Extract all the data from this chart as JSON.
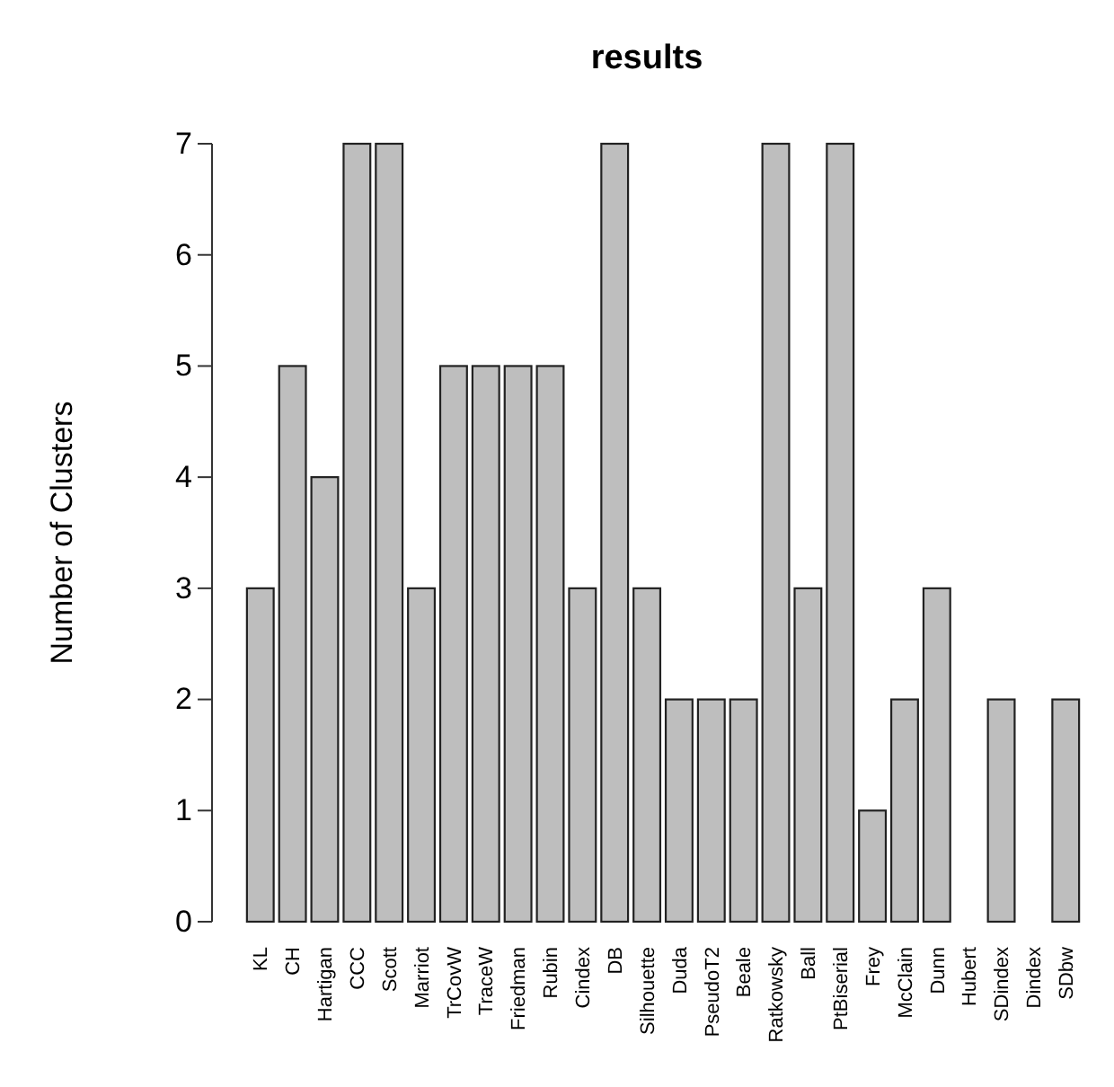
{
  "chart_data": {
    "type": "bar",
    "title": "results",
    "ylabel": "Number of Clusters",
    "categories": [
      "KL",
      "CH",
      "Hartigan",
      "CCC",
      "Scott",
      "Marriot",
      "TrCovW",
      "TraceW",
      "Friedman",
      "Rubin",
      "Cindex",
      "DB",
      "Silhouette",
      "Duda",
      "PseudoT2",
      "Beale",
      "Ratkowsky",
      "Ball",
      "PtBiserial",
      "Frey",
      "McClain",
      "Dunn",
      "Hubert",
      "SDindex",
      "Dindex",
      "SDbw"
    ],
    "values": [
      3,
      5,
      4,
      7,
      7,
      3,
      5,
      5,
      5,
      5,
      3,
      7,
      3,
      2,
      2,
      2,
      7,
      3,
      7,
      1,
      2,
      3,
      0,
      2,
      0,
      2
    ],
    "color": "#bebebe",
    "ylim": [
      0,
      7
    ],
    "yticks": [
      0,
      1,
      2,
      3,
      4,
      5,
      6,
      7
    ],
    "grid": false
  }
}
